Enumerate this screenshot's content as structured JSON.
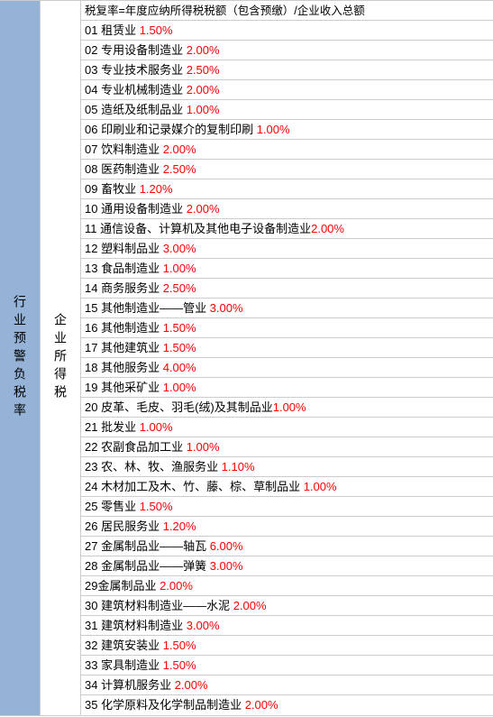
{
  "left_column_label": "行业预警负税率",
  "mid_column_label": "企业所得税",
  "header_formula": "税复率=年度应纳所得税税额（包含预缴）/企业收入总额",
  "colors": {
    "left_bg": "#95b3d7",
    "rate_color": "#ff0000",
    "text_color": "#000000",
    "border_color": "#cccccc"
  },
  "rows": [
    {
      "num": "01",
      "name": "租赁业",
      "rate": "1.50%"
    },
    {
      "num": "02",
      "name": "专用设备制造业",
      "rate": "2.00%"
    },
    {
      "num": "03",
      "name": "专业技术服务业",
      "rate": "2.50%"
    },
    {
      "num": "04",
      "name": "专业机械制造业",
      "rate": "2.00%"
    },
    {
      "num": "05",
      "name": "造纸及纸制品业",
      "rate": "1.00%"
    },
    {
      "num": "06",
      "name": "印刷业和记录媒介的复制印刷",
      "rate": "1.00%"
    },
    {
      "num": "07",
      "name": "饮料制造业",
      "rate": "2.00%"
    },
    {
      "num": "08",
      "name": "医药制造业",
      "rate": "2.50%"
    },
    {
      "num": "09",
      "name": "畜牧业",
      "rate": "1.20%"
    },
    {
      "num": "10",
      "name": "通用设备制造业",
      "rate": "2.00%"
    },
    {
      "num": "11",
      "name": "通信设备、计算机及其他电子设备制造业",
      "rate": "2.00%"
    },
    {
      "num": "12",
      "name": "塑料制品业",
      "rate": "3.00%"
    },
    {
      "num": "13",
      "name": "食品制造业",
      "rate": "1.00%"
    },
    {
      "num": "14",
      "name": "商务服务业",
      "rate": "2.50%"
    },
    {
      "num": "15",
      "name": "其他制造业——管业",
      "rate": "3.00%"
    },
    {
      "num": "16",
      "name": "其他制造业",
      "rate": "1.50%"
    },
    {
      "num": "17",
      "name": "其他建筑业",
      "rate": "1.50%"
    },
    {
      "num": "18",
      "name": "其他服务业",
      "rate": "4.00%"
    },
    {
      "num": "19",
      "name": "其他采矿业",
      "rate": "1.00%"
    },
    {
      "num": "20",
      "name": "皮革、毛皮、羽毛(绒)及其制品业",
      "rate": "1.00%"
    },
    {
      "num": "21",
      "name": "批发业",
      "rate": "1.00%"
    },
    {
      "num": "22",
      "name": "农副食品加工业",
      "rate": "1.00%"
    },
    {
      "num": "23",
      "name": "农、林、牧、渔服务业",
      "rate": "1.10%"
    },
    {
      "num": "24",
      "name": "木材加工及木、竹、藤、棕、草制品业",
      "rate": "1.00%"
    },
    {
      "num": "25",
      "name": "零售业",
      "rate": "1.50%"
    },
    {
      "num": "26",
      "name": "居民服务业",
      "rate": "1.20%"
    },
    {
      "num": "27",
      "name": "金属制品业——轴瓦",
      "rate": "6.00%"
    },
    {
      "num": "28",
      "name": "金属制品业——弹簧",
      "rate": "3.00%"
    },
    {
      "num": "29",
      "name": "金属制品业",
      "rate": "2.00%"
    },
    {
      "num": "30",
      "name": "建筑材料制造业——水泥",
      "rate": "2.00%"
    },
    {
      "num": "31",
      "name": "建筑材料制造业",
      "rate": "3.00%"
    },
    {
      "num": "32",
      "name": "建筑安装业",
      "rate": "1.50%"
    },
    {
      "num": "33",
      "name": "家具制造业",
      "rate": "1.50%"
    },
    {
      "num": "34",
      "name": "计算机服务业",
      "rate": "2.00%"
    },
    {
      "num": "35",
      "name": "化学原料及化学制品制造业",
      "rate": "2.00%"
    }
  ]
}
